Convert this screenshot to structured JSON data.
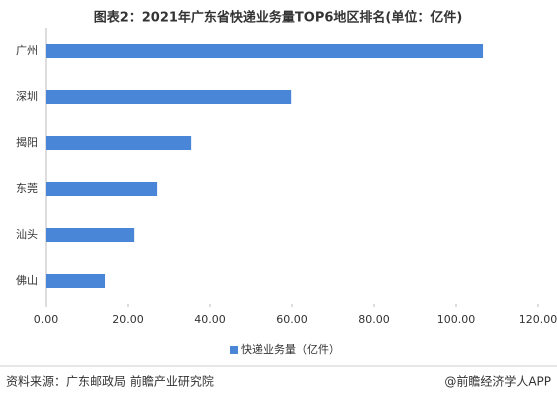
{
  "chart_data": {
    "type": "hbar",
    "title": "图表2：2021年广东省快递业务量TOP6地区排名(单位：亿件)",
    "categories": [
      "广州",
      "深圳",
      "揭阳",
      "东莞",
      "汕头",
      "佛山"
    ],
    "series": [
      {
        "name": "快递业务量（亿件）",
        "color": "#4a86d8",
        "values": [
          106.6,
          59.8,
          35.4,
          27.1,
          21.5,
          14.4
        ]
      }
    ],
    "xlim": [
      0,
      120
    ],
    "xticks": [
      {
        "value": 0,
        "label": "0.00"
      },
      {
        "value": 20,
        "label": "20.00"
      },
      {
        "value": 40,
        "label": "40.00"
      },
      {
        "value": 60,
        "label": "60.00"
      },
      {
        "value": 80,
        "label": "80.00"
      },
      {
        "value": 100,
        "label": "100.00"
      },
      {
        "value": 120,
        "label": "120.00"
      }
    ],
    "legend": "bottom",
    "source": "资料来源：广东邮政局 前瞻产业研究院",
    "credit": "@前瞻经济学人APP"
  }
}
